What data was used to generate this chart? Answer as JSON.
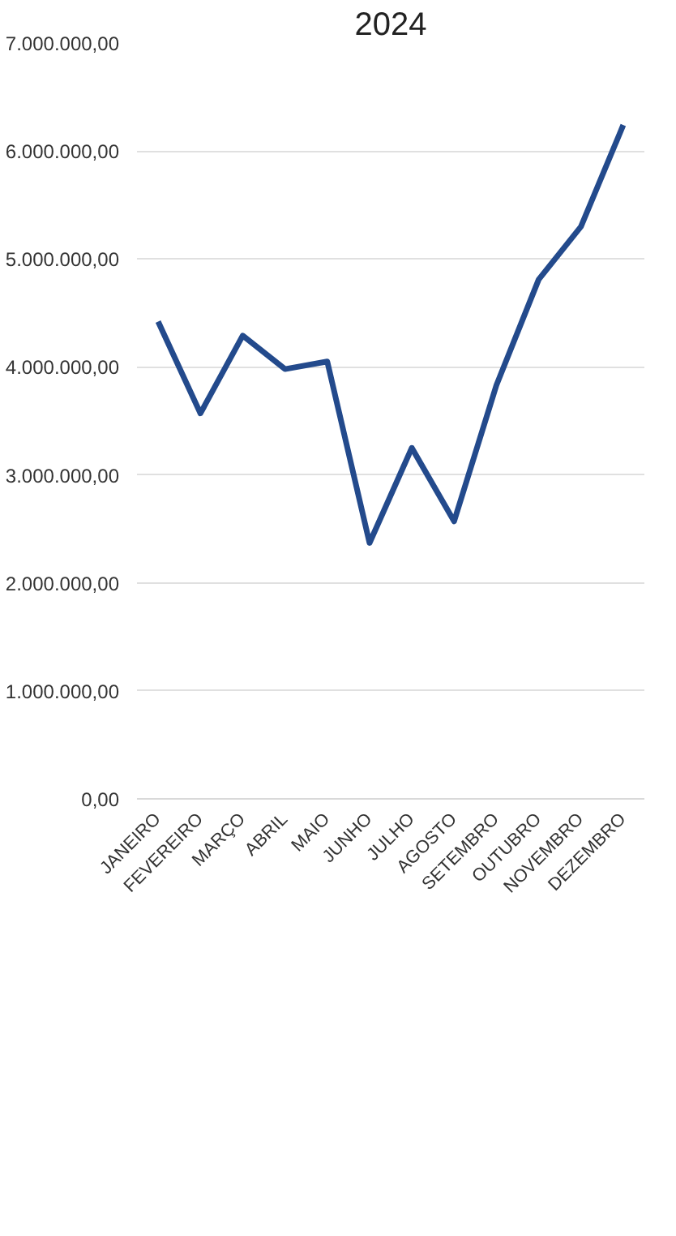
{
  "chart_data": {
    "type": "line",
    "title": "2024",
    "categories": [
      "JANEIRO",
      "FEVEREIRO",
      "MARÇO",
      "ABRIL",
      "MAIO",
      "JUNHO",
      "JULHO",
      "AGOSTO",
      "SETEMBRO",
      "OUTUBRO",
      "NOVEMBRO",
      "DEZEMBRO"
    ],
    "series": [
      {
        "color": "#234a8c",
        "values": [
          4420000,
          3570000,
          4290000,
          3980000,
          4050000,
          2370000,
          3250000,
          2570000,
          3830000,
          4810000,
          5300000,
          6240000
        ]
      }
    ],
    "ylim": [
      0,
      7000000
    ],
    "yticks": [
      {
        "value": 0,
        "label": "0,00"
      },
      {
        "value": 1000000,
        "label": "1.000.000,00"
      },
      {
        "value": 2000000,
        "label": "2.000.000,00"
      },
      {
        "value": 3000000,
        "label": "3.000.000,00"
      },
      {
        "value": 4000000,
        "label": "4.000.000,00"
      },
      {
        "value": 5000000,
        "label": "5.000.000,00"
      },
      {
        "value": 6000000,
        "label": "6.000.000,00"
      },
      {
        "value": 7000000,
        "label": "7.000.000,00"
      }
    ],
    "grid": "y",
    "marker": "none",
    "line_style": "solid"
  }
}
